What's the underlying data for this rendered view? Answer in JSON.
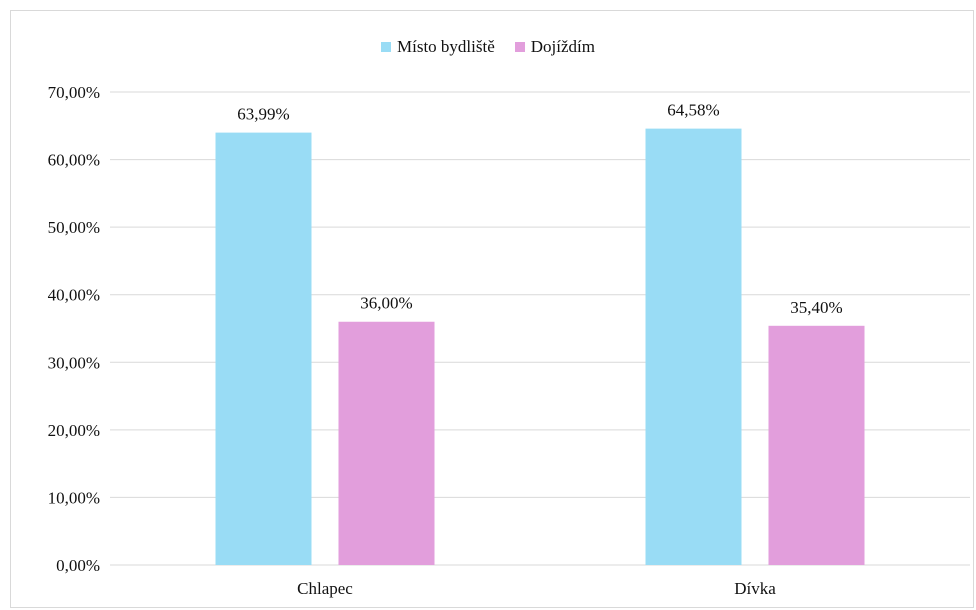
{
  "chart_data": {
    "type": "bar",
    "categories": [
      "Chlapec",
      "Dívka"
    ],
    "series": [
      {
        "name": "Místo bydliště",
        "color": "#99dcf5",
        "values": [
          63.99,
          64.58
        ],
        "labels": [
          "63,99%",
          "64,58%"
        ]
      },
      {
        "name": "Dojíždím",
        "color": "#e29edc",
        "values": [
          36.0,
          35.4
        ],
        "labels": [
          "36,00%",
          "35,40%"
        ]
      }
    ],
    "ylim": [
      0,
      70
    ],
    "yticks": [
      0,
      10,
      20,
      30,
      40,
      50,
      60,
      70
    ],
    "ytick_labels": [
      "0,00%",
      "10,00%",
      "20,00%",
      "30,00%",
      "40,00%",
      "50,00%",
      "60,00%",
      "70,00%"
    ],
    "grid": true,
    "grid_color": "#d9d9d9",
    "legend_position": "top"
  }
}
